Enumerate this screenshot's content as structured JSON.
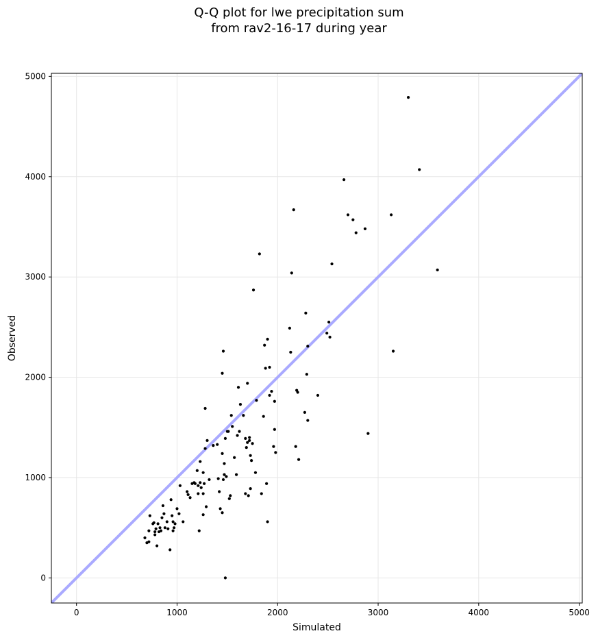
{
  "chart_data": {
    "type": "scatter",
    "title_lines": [
      "Q-Q plot for lwe precipitation sum",
      "from rav2-16-17 during year"
    ],
    "xlabel": "Simulated",
    "ylabel": "Observed",
    "xlim": [
      -250,
      5030
    ],
    "ylim": [
      -250,
      5030
    ],
    "xticks": [
      0,
      1000,
      2000,
      3000,
      4000,
      5000
    ],
    "yticks": [
      0,
      1000,
      2000,
      3000,
      4000,
      5000
    ],
    "grid": true,
    "reference_line": {
      "from": [
        -250,
        -250
      ],
      "to": [
        5030,
        5030
      ],
      "color": "#aaaaff"
    },
    "point_color": "#000000",
    "points": [
      [
        680,
        400
      ],
      [
        700,
        350
      ],
      [
        720,
        360
      ],
      [
        720,
        470
      ],
      [
        730,
        620
      ],
      [
        760,
        540
      ],
      [
        770,
        550
      ],
      [
        780,
        430
      ],
      [
        780,
        460
      ],
      [
        790,
        490
      ],
      [
        800,
        320
      ],
      [
        810,
        540
      ],
      [
        820,
        460
      ],
      [
        830,
        500
      ],
      [
        840,
        470
      ],
      [
        850,
        600
      ],
      [
        860,
        720
      ],
      [
        870,
        640
      ],
      [
        880,
        500
      ],
      [
        900,
        560
      ],
      [
        910,
        490
      ],
      [
        930,
        280
      ],
      [
        940,
        780
      ],
      [
        950,
        620
      ],
      [
        960,
        470
      ],
      [
        960,
        560
      ],
      [
        970,
        500
      ],
      [
        980,
        540
      ],
      [
        1000,
        690
      ],
      [
        1020,
        640
      ],
      [
        1030,
        920
      ],
      [
        1060,
        560
      ],
      [
        1100,
        860
      ],
      [
        1110,
        830
      ],
      [
        1130,
        800
      ],
      [
        1150,
        940
      ],
      [
        1170,
        950
      ],
      [
        1180,
        940
      ],
      [
        1200,
        1070
      ],
      [
        1210,
        920
      ],
      [
        1210,
        840
      ],
      [
        1220,
        470
      ],
      [
        1230,
        950
      ],
      [
        1230,
        1160
      ],
      [
        1240,
        900
      ],
      [
        1260,
        630
      ],
      [
        1260,
        840
      ],
      [
        1260,
        1050
      ],
      [
        1270,
        940
      ],
      [
        1280,
        1290
      ],
      [
        1280,
        1690
      ],
      [
        1290,
        710
      ],
      [
        1300,
        1370
      ],
      [
        1320,
        980
      ],
      [
        1360,
        1320
      ],
      [
        1400,
        1330
      ],
      [
        1410,
        990
      ],
      [
        1420,
        860
      ],
      [
        1430,
        690
      ],
      [
        1450,
        1240
      ],
      [
        1450,
        650
      ],
      [
        1450,
        2040
      ],
      [
        1460,
        2260
      ],
      [
        1460,
        980
      ],
      [
        1470,
        1140
      ],
      [
        1470,
        1030
      ],
      [
        1480,
        0
      ],
      [
        1480,
        1390
      ],
      [
        1490,
        1010
      ],
      [
        1500,
        1460
      ],
      [
        1510,
        1460
      ],
      [
        1520,
        790
      ],
      [
        1530,
        820
      ],
      [
        1540,
        1620
      ],
      [
        1550,
        1510
      ],
      [
        1570,
        1200
      ],
      [
        1590,
        1030
      ],
      [
        1600,
        1420
      ],
      [
        1610,
        1900
      ],
      [
        1620,
        1460
      ],
      [
        1630,
        1730
      ],
      [
        1660,
        1620
      ],
      [
        1680,
        840
      ],
      [
        1680,
        1390
      ],
      [
        1690,
        1300
      ],
      [
        1700,
        1940
      ],
      [
        1700,
        1350
      ],
      [
        1710,
        820
      ],
      [
        1720,
        1370
      ],
      [
        1720,
        1400
      ],
      [
        1730,
        890
      ],
      [
        1730,
        1220
      ],
      [
        1740,
        1170
      ],
      [
        1750,
        1340
      ],
      [
        1760,
        2870
      ],
      [
        1780,
        1050
      ],
      [
        1790,
        1770
      ],
      [
        1820,
        3230
      ],
      [
        1840,
        840
      ],
      [
        1860,
        1610
      ],
      [
        1870,
        2320
      ],
      [
        1880,
        2090
      ],
      [
        1890,
        940
      ],
      [
        1900,
        2380
      ],
      [
        1900,
        560
      ],
      [
        1920,
        1820
      ],
      [
        1920,
        2100
      ],
      [
        1940,
        1860
      ],
      [
        1960,
        1310
      ],
      [
        1970,
        1760
      ],
      [
        1970,
        1480
      ],
      [
        1980,
        1250
      ],
      [
        2120,
        2490
      ],
      [
        2130,
        2250
      ],
      [
        2140,
        3040
      ],
      [
        2160,
        3670
      ],
      [
        2180,
        1310
      ],
      [
        2190,
        1870
      ],
      [
        2200,
        1850
      ],
      [
        2210,
        1180
      ],
      [
        2270,
        1650
      ],
      [
        2280,
        2640
      ],
      [
        2290,
        2030
      ],
      [
        2300,
        1570
      ],
      [
        2300,
        2310
      ],
      [
        2400,
        1820
      ],
      [
        2490,
        2440
      ],
      [
        2510,
        2550
      ],
      [
        2520,
        2400
      ],
      [
        2540,
        3130
      ],
      [
        2660,
        3970
      ],
      [
        2700,
        3620
      ],
      [
        2750,
        3570
      ],
      [
        2780,
        3440
      ],
      [
        2870,
        3480
      ],
      [
        2900,
        1440
      ],
      [
        3130,
        3620
      ],
      [
        3150,
        2260
      ],
      [
        3300,
        4790
      ],
      [
        3410,
        4070
      ],
      [
        3590,
        3070
      ]
    ]
  }
}
